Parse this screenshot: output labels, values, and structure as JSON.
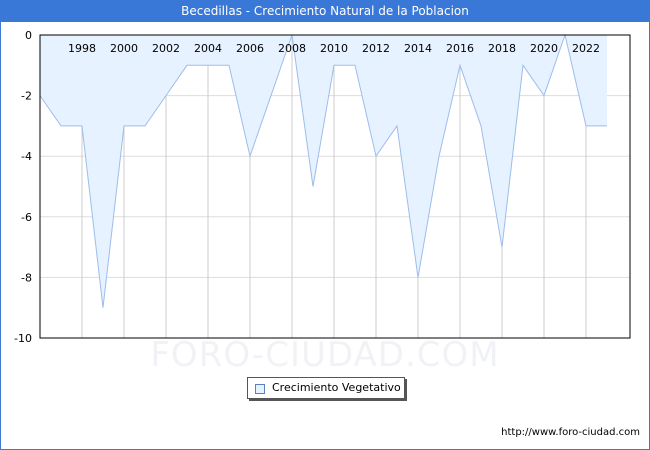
{
  "header": {
    "title": "Becedillas - Crecimiento Natural de la Poblacion"
  },
  "legend": {
    "label": "Crecimiento Vegetativo"
  },
  "footer": {
    "url": "http://www.foro-ciudad.com"
  },
  "watermark": "FORO-CIUDAD.COM",
  "colors": {
    "title_bg": "#3a78d8",
    "fill": "#e6f2ff",
    "line": "#9dbdea",
    "grid": "#dddddd"
  },
  "chart_data": {
    "type": "area",
    "title": "Becedillas - Crecimiento Natural de la Poblacion",
    "xlabel": "",
    "ylabel": "",
    "ylim": [
      -10,
      0
    ],
    "yticks": [
      0,
      -2,
      -4,
      -6,
      -8,
      -10
    ],
    "xtick_labels": [
      "1998",
      "2000",
      "2002",
      "2004",
      "2006",
      "2008",
      "2010",
      "2012",
      "2014",
      "2016",
      "2018",
      "2020",
      "2022"
    ],
    "grid": true,
    "legend_position": "bottom",
    "x": [
      1996,
      1997,
      1998,
      1999,
      2000,
      2001,
      2002,
      2003,
      2004,
      2005,
      2006,
      2007,
      2008,
      2009,
      2010,
      2011,
      2012,
      2013,
      2014,
      2015,
      2016,
      2017,
      2018,
      2019,
      2020,
      2021,
      2022,
      2023
    ],
    "series": [
      {
        "name": "Crecimiento Vegetativo",
        "values": [
          -2,
          -3,
          -3,
          -9,
          -3,
          -3,
          -2,
          -1,
          -1,
          -1,
          -4,
          -2,
          0,
          -5,
          -1,
          -1,
          -4,
          -3,
          -8,
          -4,
          -1,
          -3,
          -7,
          -1,
          -2,
          0,
          -3,
          -3
        ]
      }
    ]
  }
}
